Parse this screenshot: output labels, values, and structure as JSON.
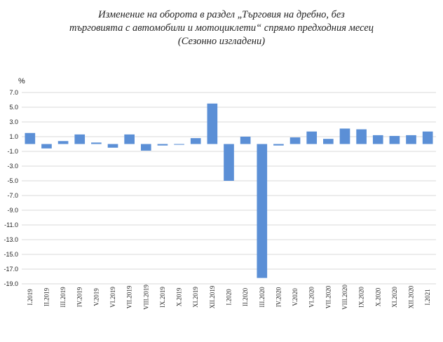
{
  "chart_data": {
    "type": "bar",
    "title_lines": [
      "Изменение на оборота в раздел „Търговия на дребно, без",
      "търговията с автомобили и мотоциклети“ спрямо предходния месец",
      "(Сезонно изгладени)"
    ],
    "ylabel": "%",
    "ylim": [
      -19,
      7
    ],
    "yticks": [
      7.0,
      5.0,
      3.0,
      1.0,
      -1.0,
      -3.0,
      -5.0,
      -7.0,
      -9.0,
      -11.0,
      -13.0,
      -15.0,
      -17.0,
      -19.0
    ],
    "ytick_labels": [
      "7.0",
      "5.0",
      "3.0",
      "1.0",
      "-1.0",
      "-3.0",
      "-5.0",
      "-7.0",
      "-9.0",
      "-11.0",
      "-13.0",
      "-15.0",
      "-17.0",
      "-19.0"
    ],
    "grid": true,
    "bar_color": "#5b8fd6",
    "categories": [
      "I.2019",
      "II.2019",
      "III.2019",
      "IV.2019",
      "V.2019",
      "VI.2019",
      "VII.2019",
      "VIII.2019",
      "IX.2019",
      "X.2019",
      "XI.2019",
      "XII.2019",
      "I.2020",
      "II.2020",
      "III.2020",
      "IV.2020",
      "V.2020",
      "VI.2020",
      "VII.2020",
      "VIII.2020",
      "IX.2020",
      "X.2020",
      "XI.2020",
      "XII.2020",
      "I.2021"
    ],
    "values": [
      1.5,
      -0.6,
      0.4,
      1.3,
      0.2,
      -0.5,
      1.3,
      -0.9,
      -0.2,
      -0.1,
      0.8,
      5.5,
      -5.0,
      1.0,
      -18.2,
      -0.2,
      0.9,
      1.7,
      0.7,
      2.1,
      2.0,
      1.2,
      1.1,
      1.2,
      1.7
    ]
  }
}
